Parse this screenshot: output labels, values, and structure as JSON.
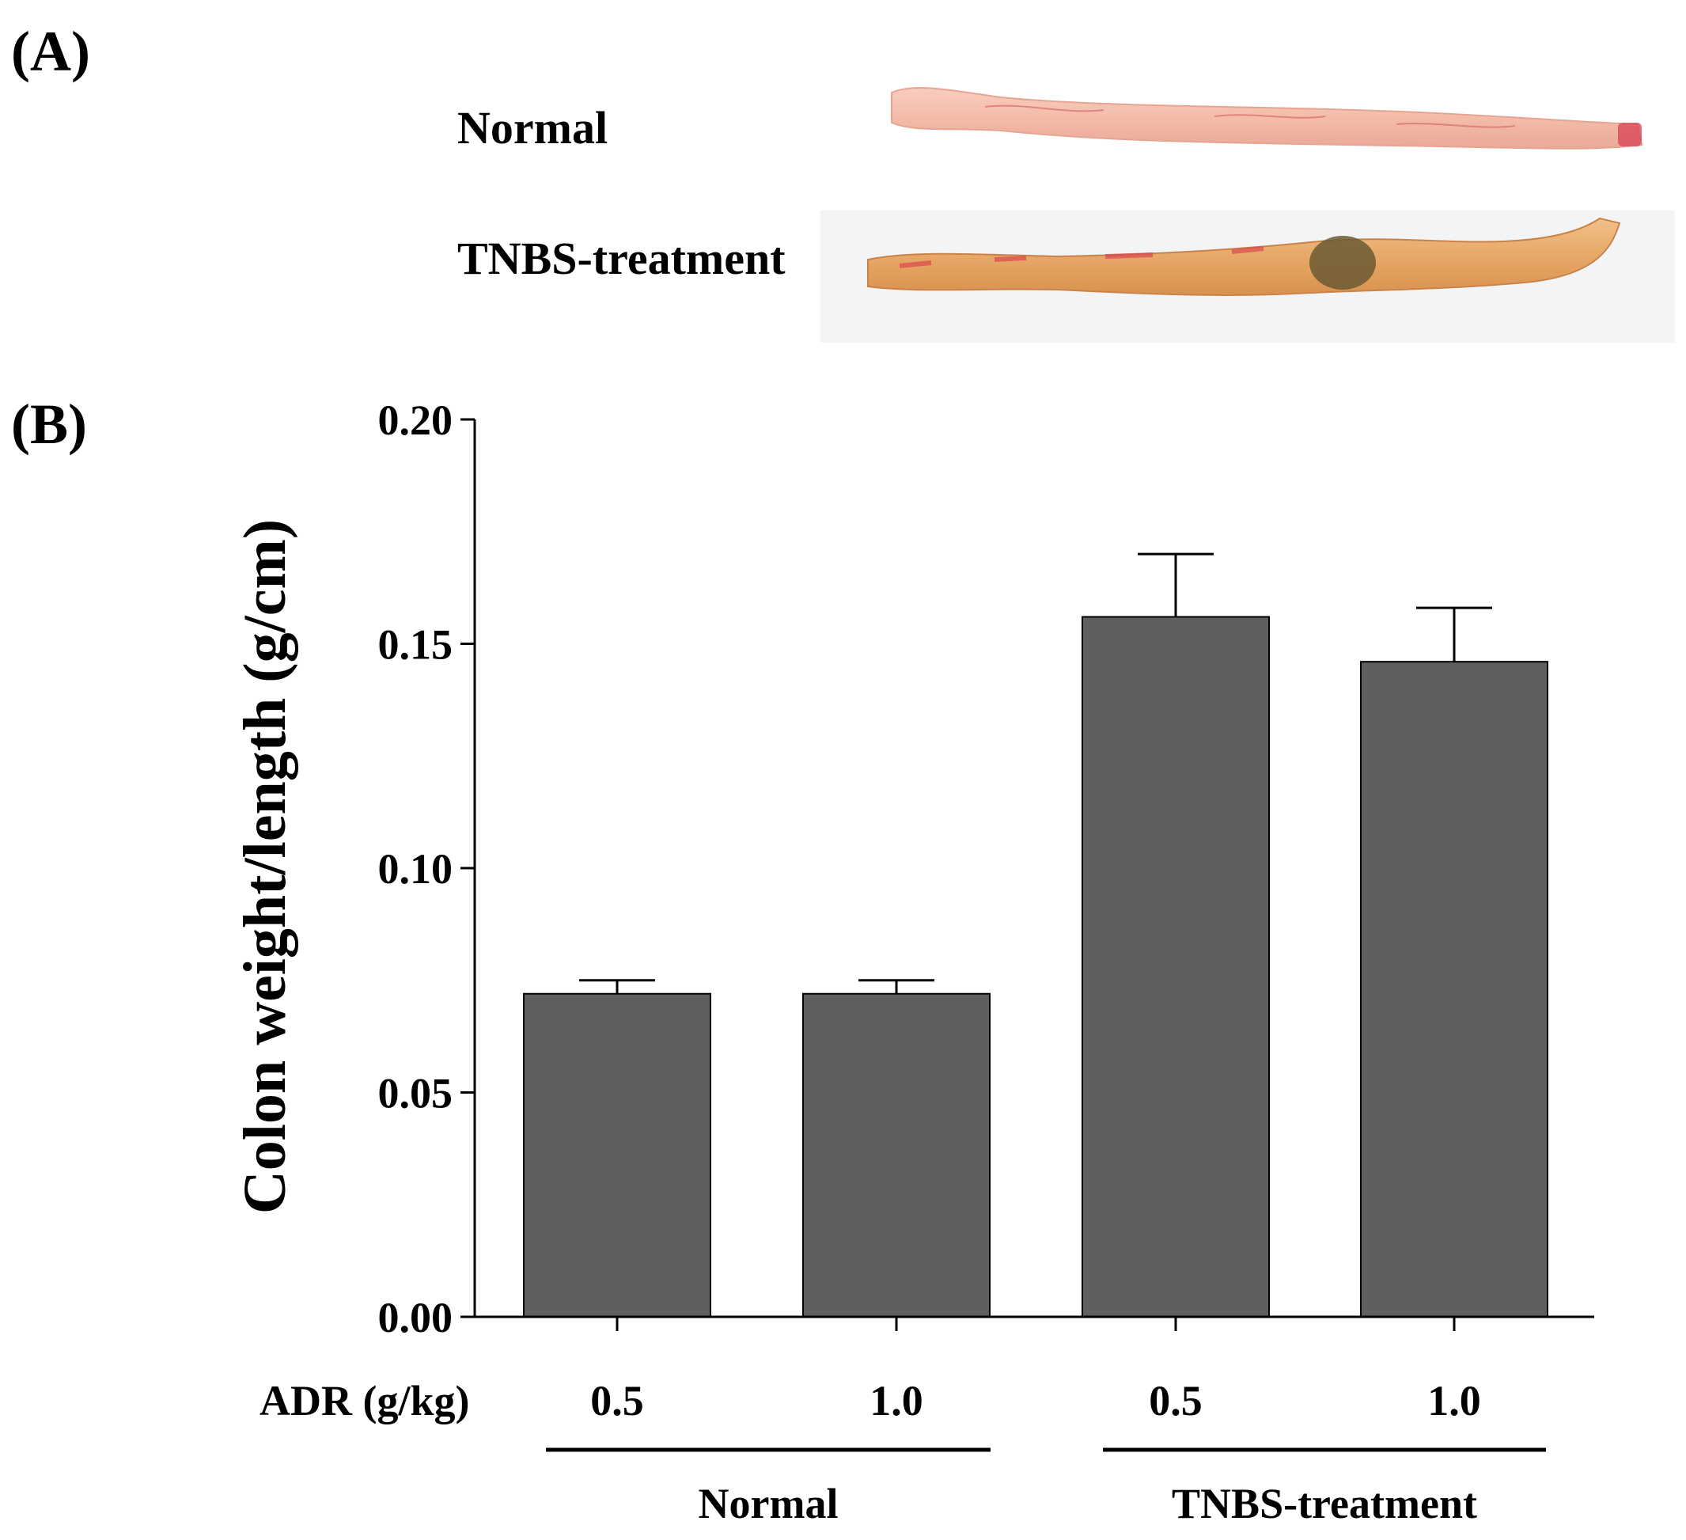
{
  "panel_a": {
    "label": "(A)",
    "rows": [
      {
        "label": "Normal"
      },
      {
        "label": "TNBS-treatment"
      }
    ]
  },
  "panel_b": {
    "label": "(B)"
  },
  "colors": {
    "bar": "#5f5f5f",
    "axis": "#000000",
    "colon_normal": "#f0b8a8",
    "colon_tnbs": "#e8a86a",
    "lesion": "#6b5a33"
  },
  "chart_data": {
    "type": "bar",
    "title": "",
    "ylabel": "Colon weight/length (g/cm)",
    "xlabel_row_title": "ADR (g/kg)",
    "categories": [
      "0.5",
      "1.0",
      "0.5",
      "1.0"
    ],
    "groups": [
      {
        "name": "Normal",
        "members": [
          0,
          1
        ]
      },
      {
        "name": "TNBS-treatment",
        "members": [
          2,
          3
        ]
      }
    ],
    "values": [
      0.072,
      0.072,
      0.156,
      0.146
    ],
    "errors": [
      0.003,
      0.003,
      0.014,
      0.012
    ],
    "ylim": [
      0,
      0.2
    ],
    "yticks": [
      "0.00",
      "0.05",
      "0.10",
      "0.15",
      "0.20"
    ],
    "ytick_values": [
      0,
      0.05,
      0.1,
      0.15,
      0.2
    ],
    "grid": false
  }
}
